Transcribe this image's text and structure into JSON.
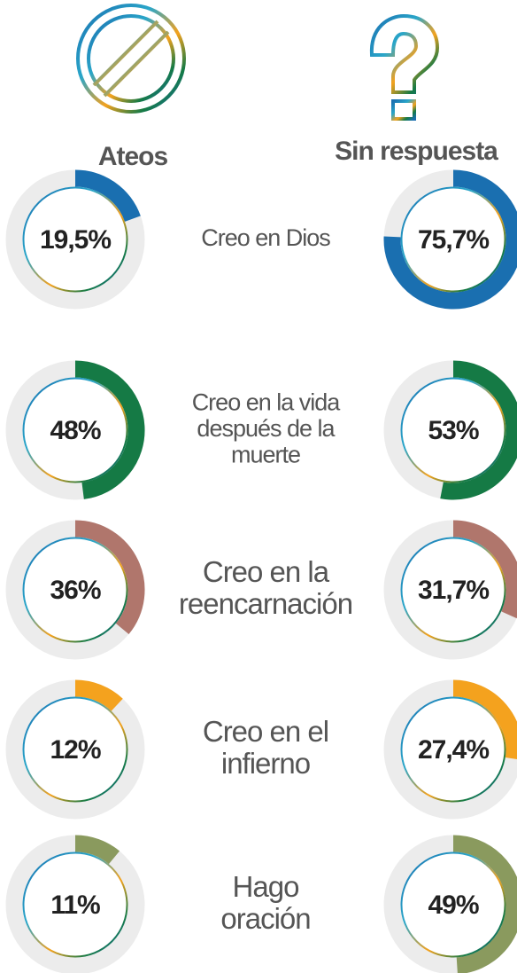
{
  "chart_data": {
    "type": "donut",
    "categories": [
      [
        "Creo en Dios"
      ],
      [
        "Creo en la vida",
        "después de la",
        "muerte"
      ],
      [
        "Creo en la",
        "reencarnación"
      ],
      [
        "Creo en el",
        "infierno"
      ],
      [
        "Hago",
        "oración"
      ]
    ],
    "colors": [
      "#1a6fb0",
      "#157a45",
      "#b0766c",
      "#f4a21e",
      "#8a9a5e"
    ],
    "series": [
      {
        "name": "Ateos",
        "values": [
          19.5,
          48,
          36,
          12,
          11
        ],
        "value_labels": [
          "19,5%",
          "48%",
          "36%",
          "12%",
          "11%"
        ]
      },
      {
        "name": "Sin respuesta",
        "values": [
          75.7,
          53,
          31.7,
          27.4,
          49
        ],
        "value_labels": [
          "75,7%",
          "53%",
          "31,7%",
          "27,4%",
          "49%"
        ]
      }
    ]
  }
}
